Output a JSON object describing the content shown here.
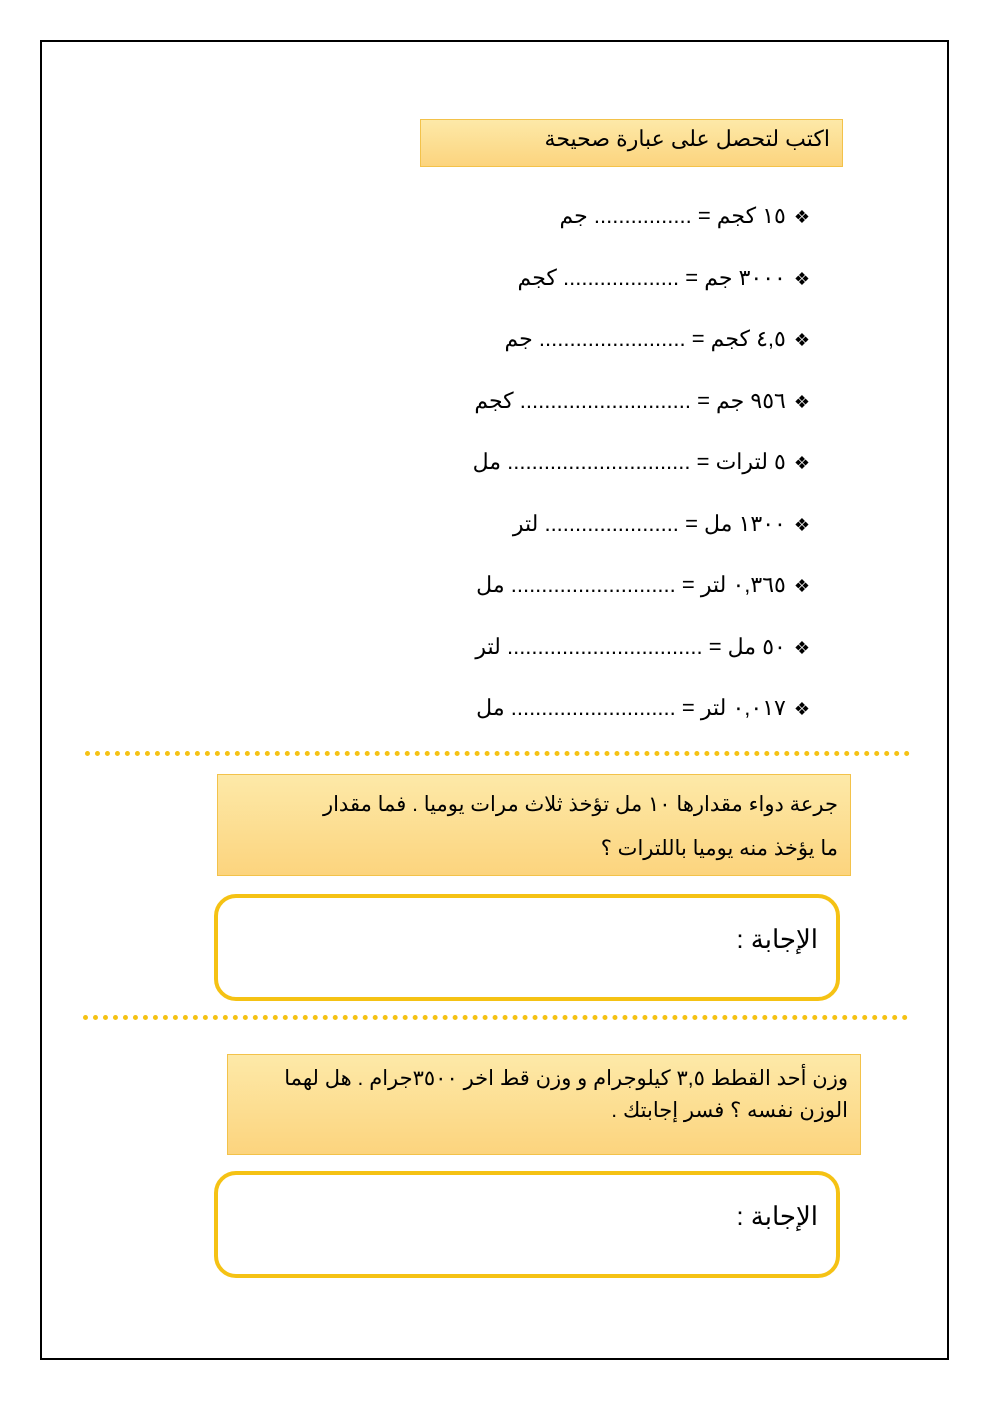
{
  "title": "اكتب لتحصل على عبارة صحيحة",
  "bullet_icon": "four-diamond-bullet",
  "items": [
    {
      "left": "١٥ كجم =",
      "dots": "................",
      "unit": "جم"
    },
    {
      "left": "٣٠٠٠ جم =",
      "dots": "...................",
      "unit": "كجم"
    },
    {
      "left": "٤,٥ كجم =",
      "dots": "........................",
      "unit": "جم"
    },
    {
      "left": "٩٥٦ جم =",
      "dots": "............................",
      "unit": "كجم"
    },
    {
      "left": "٥ لترات =",
      "dots": "..............................",
      "unit": "مل"
    },
    {
      "left": "١٣٠٠ مل =",
      "dots": "......................",
      "unit": "لتر"
    },
    {
      "left": "٠,٣٦٥ لتر =",
      "dots": "...........................",
      "unit": "مل"
    },
    {
      "left": "٥٠ مل =",
      "dots": "................................",
      "unit": "لتر"
    },
    {
      "left": "٠,٠١٧ لتر =",
      "dots": "...........................",
      "unit": "مل"
    }
  ],
  "question1": {
    "line1": "جرعة دواء مقدارها ١٠ مل تؤخذ ثلاث مرات يوميا . فما مقدار",
    "line2": "ما يؤخذ منه يوميا باللترات ؟"
  },
  "answer_label": "الإجابة :",
  "question2": {
    "line1": "وزن أحد القطط ٣,٥ كيلوجرام و وزن قط اخر ٣٥٠٠جرام . هل لهما",
    "line2": "الوزن نفسه ؟ فسر إجابتك ."
  },
  "colors": {
    "accent": "#f5c214",
    "box_fill": "#fcd47e"
  }
}
